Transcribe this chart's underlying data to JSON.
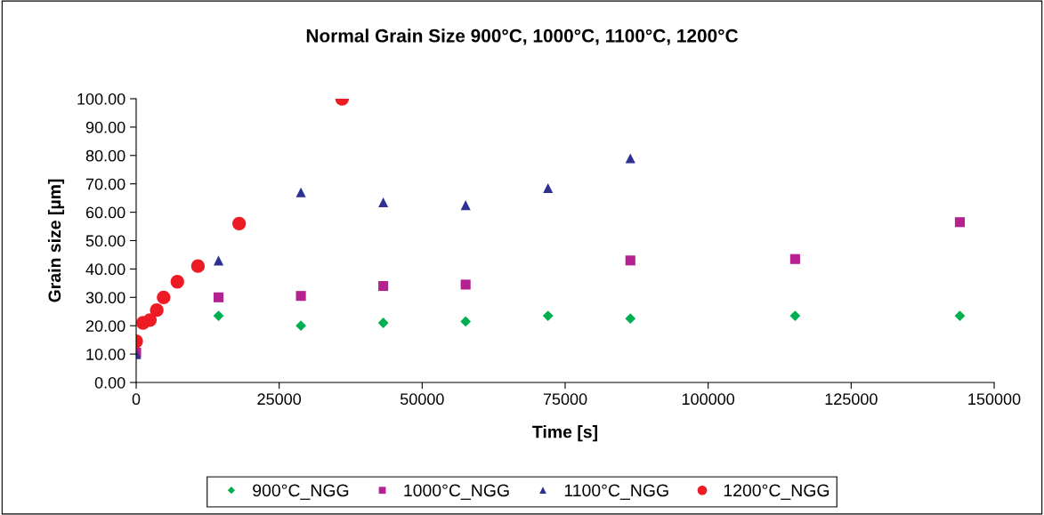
{
  "chart_data": {
    "type": "scatter",
    "title": "Normal Grain Size 900°C, 1000°C, 1100°C, 1200°C",
    "xlabel": "Time [s]",
    "ylabel": "Grain size [µm]",
    "xlim": [
      0,
      150000
    ],
    "xticks": [
      0,
      25000,
      50000,
      75000,
      100000,
      125000,
      150000
    ],
    "ylim": [
      0,
      100
    ],
    "yticks": [
      {
        "value": 0,
        "label": "0.00"
      },
      {
        "value": 10,
        "label": "10.00"
      },
      {
        "value": 20,
        "label": "20.00"
      },
      {
        "value": 30,
        "label": "30.00"
      },
      {
        "value": 40,
        "label": "40.00"
      },
      {
        "value": 50,
        "label": "50.00"
      },
      {
        "value": 60,
        "label": "60.00"
      },
      {
        "value": 70,
        "label": "70.00"
      },
      {
        "value": 80,
        "label": "80.00"
      },
      {
        "value": 90,
        "label": "90.00"
      },
      {
        "value": 100,
        "label": "100.00"
      }
    ],
    "grid": false,
    "legend": "bottom",
    "series": [
      {
        "name": "900°C_NGG",
        "color": "#00b050",
        "marker": "diamond",
        "x": [
          14400,
          28800,
          43200,
          57600,
          72000,
          86400,
          115200,
          144000
        ],
        "values": [
          23.5,
          20,
          21,
          21.5,
          23.5,
          22.5,
          23.5,
          23.5
        ]
      },
      {
        "name": "1000°C_NGG",
        "color": "#b5218e",
        "marker": "square",
        "x": [
          0,
          14400,
          28800,
          43200,
          57600,
          86400,
          115200,
          144000
        ],
        "values": [
          10.5,
          30,
          30.5,
          34,
          34.5,
          43,
          43.5,
          56.5
        ]
      },
      {
        "name": "1100°C_NGG",
        "color": "#2e3192",
        "marker": "triangle",
        "x": [
          0,
          14400,
          28800,
          43200,
          57600,
          72000,
          86400
        ],
        "values": [
          10,
          43,
          67,
          63.5,
          62.5,
          68.5,
          79
        ]
      },
      {
        "name": "1200°C_NGG",
        "color": "#ed1c24",
        "marker": "circle",
        "x": [
          0,
          1200,
          2400,
          3600,
          4800,
          7200,
          10800,
          18000,
          36000
        ],
        "values": [
          14.5,
          21,
          22,
          25.5,
          30,
          35.5,
          41,
          56,
          100
        ]
      }
    ]
  }
}
